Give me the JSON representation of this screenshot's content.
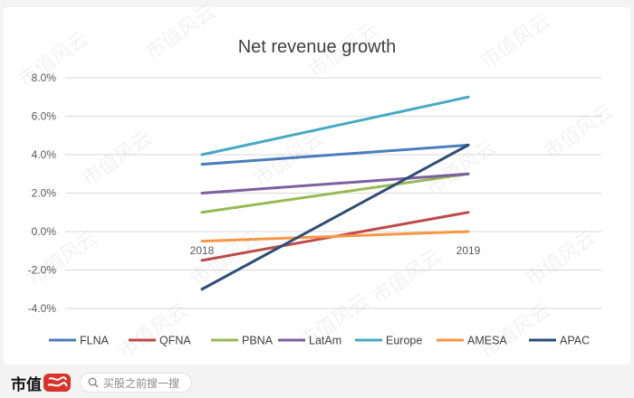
{
  "chart_data": {
    "type": "line",
    "title": "Net revenue growth",
    "categories": [
      "2018",
      "2019"
    ],
    "ylim": [
      -4,
      8
    ],
    "yticks": [
      "8.0%",
      "6.0%",
      "4.0%",
      "2.0%",
      "0.0%",
      "-2.0%",
      "-4.0%"
    ],
    "ytick_values": [
      8,
      6,
      4,
      2,
      0,
      -2,
      -4
    ],
    "grid": true,
    "legend": "bottom",
    "series": [
      {
        "name": "FLNA",
        "values": [
          3.5,
          4.5
        ],
        "color": "#4a7ebb"
      },
      {
        "name": "QFNA",
        "values": [
          -1.5,
          1.0
        ],
        "color": "#be4b48"
      },
      {
        "name": "PBNA",
        "values": [
          1.0,
          3.0
        ],
        "color": "#98b954"
      },
      {
        "name": "LatAm",
        "values": [
          2.0,
          3.0
        ],
        "color": "#7d60a0"
      },
      {
        "name": "Europe",
        "values": [
          4.0,
          7.0
        ],
        "color": "#46aac4"
      },
      {
        "name": "AMESA",
        "values": [
          -0.5,
          0.0
        ],
        "color": "#f79646"
      },
      {
        "name": "APAC",
        "values": [
          -3.0,
          4.5
        ],
        "color": "#2c4d75"
      }
    ]
  },
  "watermark": "市值风云",
  "footer": {
    "brand": "市值",
    "search_placeholder": "买股之前搜一搜"
  }
}
